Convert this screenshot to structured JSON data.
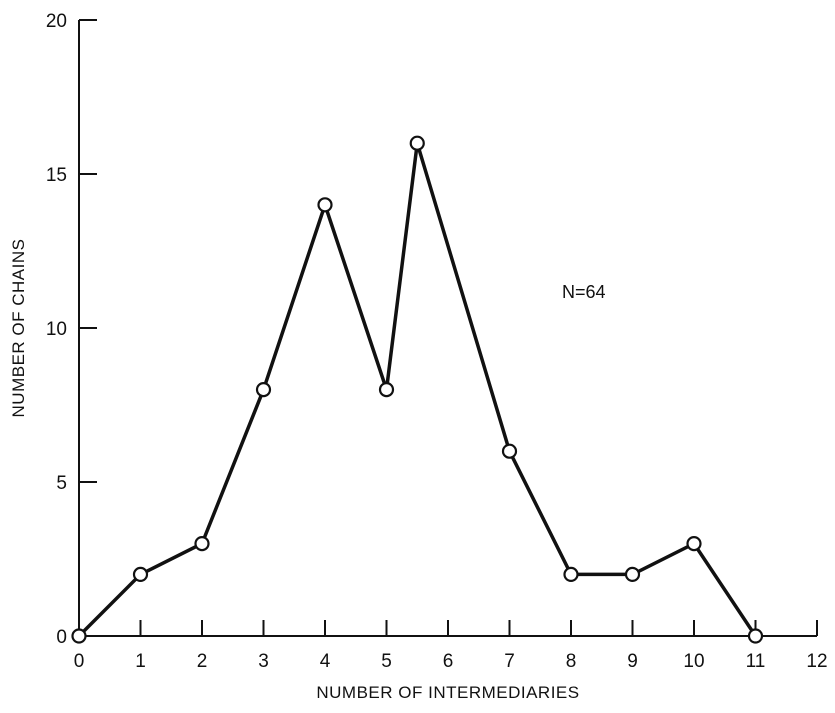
{
  "chart_data": {
    "type": "line",
    "xlabel": "NUMBER OF INTERMEDIARIES",
    "ylabel": "NUMBER OF CHAINS",
    "xlim": [
      0,
      12
    ],
    "ylim": [
      0,
      20
    ],
    "xticks": [
      0,
      1,
      2,
      3,
      4,
      5,
      6,
      7,
      8,
      9,
      10,
      11,
      12
    ],
    "yticks": [
      0,
      5,
      10,
      15,
      20
    ],
    "grid": false,
    "annotation": "N=64",
    "series": [
      {
        "x": [
          0,
          1,
          2,
          3,
          4,
          5,
          5.5,
          7,
          8,
          9,
          10,
          11
        ],
        "y": [
          0,
          2,
          3,
          8,
          14,
          8,
          16,
          6,
          2,
          2,
          3,
          0
        ]
      }
    ]
  }
}
